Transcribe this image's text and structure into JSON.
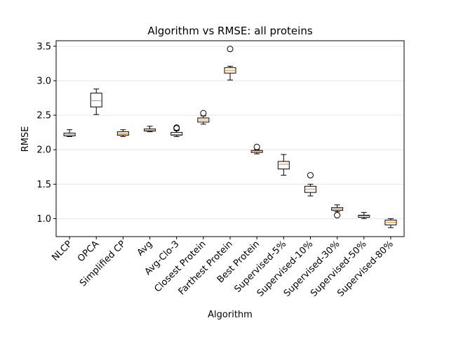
{
  "chart_data": {
    "type": "boxplot",
    "title": "Algorithm vs RMSE: all proteins",
    "xlabel": "Algorithm",
    "ylabel": "RMSE",
    "ylim": [
      0.74,
      3.58
    ],
    "yticks": [
      "1.0",
      "1.5",
      "2.0",
      "2.5",
      "3.0",
      "3.5"
    ],
    "grid": "horizontal",
    "categories": [
      "NLCP",
      "OPCA",
      "Simplified CP",
      "Avg",
      "Avg-Clo-3",
      "Closest Protein",
      "Farthest Protein",
      "Best Protein",
      "Supervised-5%",
      "Supervised-10%",
      "Supervised-30%",
      "Supervised-50%",
      "Supervised-80%"
    ],
    "boxes": [
      {
        "whislo": 2.19,
        "q1": 2.2,
        "med": 2.22,
        "q3": 2.24,
        "whishi": 2.29,
        "fliers": []
      },
      {
        "whislo": 2.51,
        "q1": 2.62,
        "med": 2.71,
        "q3": 2.82,
        "whishi": 2.88,
        "fliers": []
      },
      {
        "whislo": 2.19,
        "q1": 2.21,
        "med": 2.23,
        "q3": 2.26,
        "whishi": 2.29,
        "fliers": []
      },
      {
        "whislo": 2.26,
        "q1": 2.27,
        "med": 2.28,
        "q3": 2.3,
        "whishi": 2.34,
        "fliers": []
      },
      {
        "whislo": 2.19,
        "q1": 2.21,
        "med": 2.22,
        "q3": 2.25,
        "whishi": 2.28,
        "fliers": [
          2.31,
          2.32
        ]
      },
      {
        "whislo": 2.37,
        "q1": 2.4,
        "med": 2.43,
        "q3": 2.46,
        "whishi": 2.49,
        "fliers": [
          2.53
        ]
      },
      {
        "whislo": 3.01,
        "q1": 3.11,
        "med": 3.15,
        "q3": 3.19,
        "whishi": 3.21,
        "fliers": [
          3.46
        ]
      },
      {
        "whislo": 1.94,
        "q1": 1.96,
        "med": 1.98,
        "q3": 1.99,
        "whishi": 2.0,
        "fliers": [
          2.04
        ]
      },
      {
        "whislo": 1.63,
        "q1": 1.72,
        "med": 1.79,
        "q3": 1.83,
        "whishi": 1.93,
        "fliers": []
      },
      {
        "whislo": 1.33,
        "q1": 1.38,
        "med": 1.43,
        "q3": 1.47,
        "whishi": 1.5,
        "fliers": [
          1.63
        ]
      },
      {
        "whislo": 1.1,
        "q1": 1.12,
        "med": 1.14,
        "q3": 1.16,
        "whishi": 1.2,
        "fliers": [
          1.05
        ]
      },
      {
        "whislo": 1.0,
        "q1": 1.02,
        "med": 1.04,
        "q3": 1.05,
        "whishi": 1.09,
        "fliers": []
      },
      {
        "whislo": 0.87,
        "q1": 0.91,
        "med": 0.95,
        "q3": 0.98,
        "whishi": 1.0,
        "fliers": []
      }
    ],
    "colors": {
      "box": "#000000",
      "median": "#ff7f0e",
      "grid": "#e6e6e6"
    }
  }
}
